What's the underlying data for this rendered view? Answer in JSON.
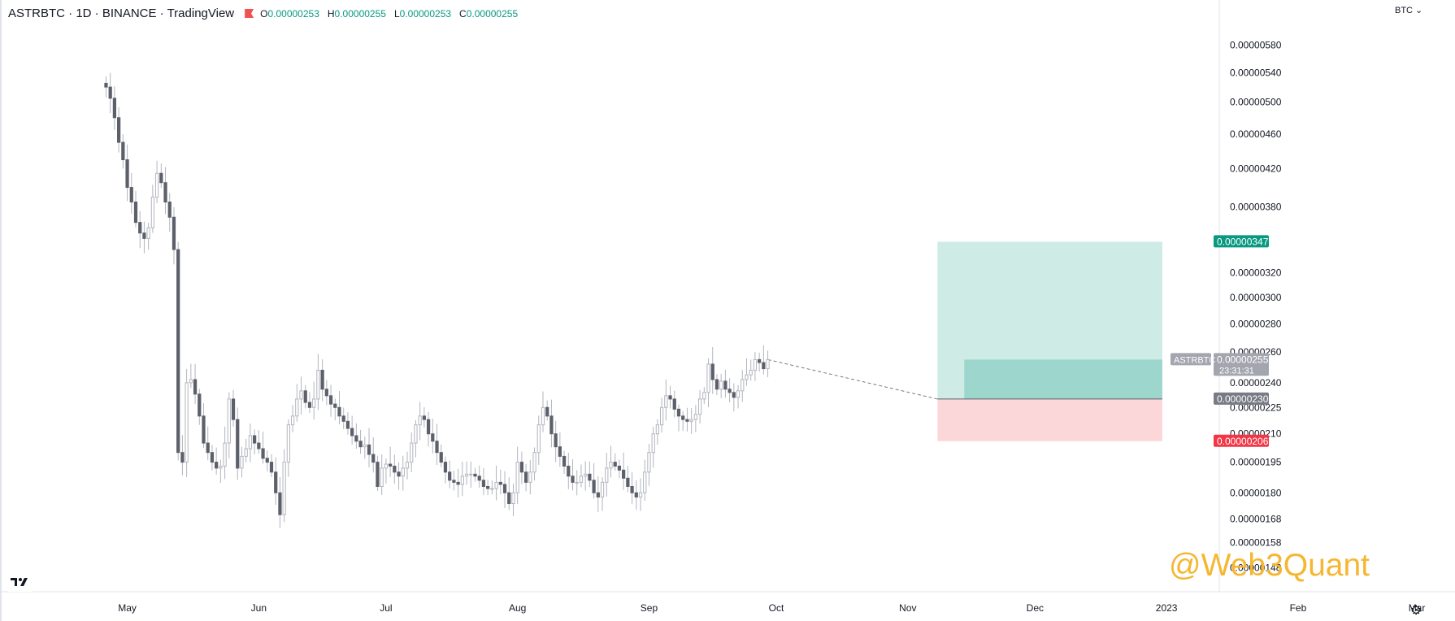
{
  "header": {
    "symbol": "ASTRBTC",
    "interval": "1D",
    "exchange": "BINANCE",
    "platform": "TradingView",
    "title": "ASTRBTC · 1D · BINANCE · TradingView",
    "ohlc": {
      "o": "0.00000253",
      "h": "0.00000255",
      "l": "0.00000253",
      "c": "0.00000255"
    }
  },
  "currency_label": "BTC",
  "watermark": "@Web3Quant",
  "colors": {
    "candle": "#5d606b",
    "wick": "#b2b5be",
    "profit_zone": "#089981",
    "loss_zone": "#f23645",
    "accent": "#089981",
    "watermark": "#f5b731"
  },
  "icons": {
    "logo": "tradingview-logo-icon",
    "settings": "gear-icon",
    "flag": "flag-icon"
  },
  "chart_data": {
    "type": "candlestick",
    "title": "ASTRBTC · 1D · BINANCE · TradingView",
    "ylabel": "BTC",
    "ylim": [
      1.45e-06,
      6.1e-06
    ],
    "y_scale": "log",
    "y_ticks": [
      "0.00000580",
      "0.00000540",
      "0.00000500",
      "0.00000460",
      "0.00000420",
      "0.00000380",
      "0.00000320",
      "0.00000300",
      "0.00000280",
      "0.00000260",
      "0.00000240",
      "0.00000225",
      "0.00000210",
      "0.00000195",
      "0.00000180",
      "0.00000168",
      "0.00000158",
      "0.00000148"
    ],
    "x_ticks": [
      "May",
      "Jun",
      "Jul",
      "Aug",
      "Sep",
      "Oct",
      "Nov",
      "Dec",
      "2023",
      "Feb",
      "Mar"
    ],
    "x_tick_dates": [
      "2022-05-01",
      "2022-06-01",
      "2022-07-01",
      "2022-08-01",
      "2022-09-01",
      "2022-10-01",
      "2022-11-01",
      "2022-12-01",
      "2023-01-01",
      "2023-02-01",
      "2023-03-01"
    ],
    "x_range": [
      "2022-04-01",
      "2023-03-10"
    ],
    "first_date": "2022-04-26",
    "grid": false,
    "series": [
      {
        "name": "ASTRBTC",
        "close": [
          5.2e-06,
          5.05e-06,
          4.8e-06,
          4.5e-06,
          4.3e-06,
          4e-06,
          3.85e-06,
          3.65e-06,
          3.55e-06,
          3.5e-06,
          3.6e-06,
          3.9e-06,
          4.15e-06,
          4.05e-06,
          3.85e-06,
          3.7e-06,
          3.4e-06,
          2e-06,
          1.95e-06,
          2.4e-06,
          2.42e-06,
          2.33e-06,
          2.2e-06,
          2.05e-06,
          2e-06,
          1.95e-06,
          1.92e-06,
          1.93e-06,
          2.05e-06,
          2.3e-06,
          2.18e-06,
          1.92e-06,
          1.98e-06,
          2.02e-06,
          2.09e-06,
          2.05e-06,
          2.02e-06,
          1.97e-06,
          1.95e-06,
          1.9e-06,
          1.8e-06,
          1.7e-06,
          1.95e-06,
          2.15e-06,
          2.2e-06,
          2.3e-06,
          2.35e-06,
          2.28e-06,
          2.25e-06,
          2.3e-06,
          2.48e-06,
          2.36e-06,
          2.32e-06,
          2.27e-06,
          2.25e-06,
          2.2e-06,
          2.17e-06,
          2.13e-06,
          2.09e-06,
          2.06e-06,
          2.03e-06,
          2.04e-06,
          1.99e-06,
          1.95e-06,
          1.83e-06,
          1.92e-06,
          1.94e-06,
          1.93e-06,
          1.9e-06,
          1.88e-06,
          1.92e-06,
          1.95e-06,
          2.05e-06,
          2.15e-06,
          2.2e-06,
          2.18e-06,
          2.1e-06,
          2.06e-06,
          2e-06,
          1.95e-06,
          1.9e-06,
          1.86e-06,
          1.85e-06,
          1.84e-06,
          1.88e-06,
          1.89e-06,
          1.89e-06,
          1.88e-06,
          1.86e-06,
          1.83e-06,
          1.82e-06,
          1.82e-06,
          1.85e-06,
          1.84e-06,
          1.8e-06,
          1.75e-06,
          1.8e-06,
          1.95e-06,
          1.9e-06,
          1.85e-06,
          1.9e-06,
          2e-06,
          2.15e-06,
          2.25e-06,
          2.2e-06,
          2.1e-06,
          2.03e-06,
          1.98e-06,
          1.93e-06,
          1.88e-06,
          1.85e-06,
          1.85e-06,
          1.88e-06,
          1.89e-06,
          1.86e-06,
          1.8e-06,
          1.78e-06,
          1.85e-06,
          1.92e-06,
          1.95e-06,
          1.93e-06,
          1.91e-06,
          1.87e-06,
          1.83e-06,
          1.8e-06,
          1.78e-06,
          1.8e-06,
          1.9e-06,
          2e-06,
          2.1e-06,
          2.15e-06,
          2.25e-06,
          2.32e-06,
          2.3e-06,
          2.24e-06,
          2.2e-06,
          2.18e-06,
          2.17e-06,
          2.18e-06,
          2.21e-06,
          2.3e-06,
          2.34e-06,
          2.52e-06,
          2.42e-06,
          2.36e-06,
          2.41e-06,
          2.36e-06,
          2.34e-06,
          2.31e-06,
          2.35e-06,
          2.42e-06,
          2.45e-06,
          2.48e-06,
          2.55e-06,
          2.53e-06,
          2.49e-06,
          2.55e-06
        ]
      }
    ],
    "position": {
      "type": "long",
      "start_date": "2022-11-08",
      "end_date": "2022-12-31",
      "entry": 2.3e-06,
      "take_profit": 3.47e-06,
      "stop_loss": 2.06e-06
    },
    "price_labels": [
      {
        "name": "take-profit-label",
        "value": 3.47e-06,
        "text": "0.00000347",
        "color": "#089981"
      },
      {
        "name": "last-price-label",
        "value": 2.55e-06,
        "text": "0.00000255",
        "sub": "23:31:31",
        "symbol": "ASTRBTC",
        "color": "#a3a6af"
      },
      {
        "name": "entry-label",
        "value": 2.3e-06,
        "text": "0.00000230",
        "color": "#787b86"
      },
      {
        "name": "stop-loss-label",
        "value": 2.06e-06,
        "text": "0.00000206",
        "color": "#f23645"
      }
    ]
  }
}
